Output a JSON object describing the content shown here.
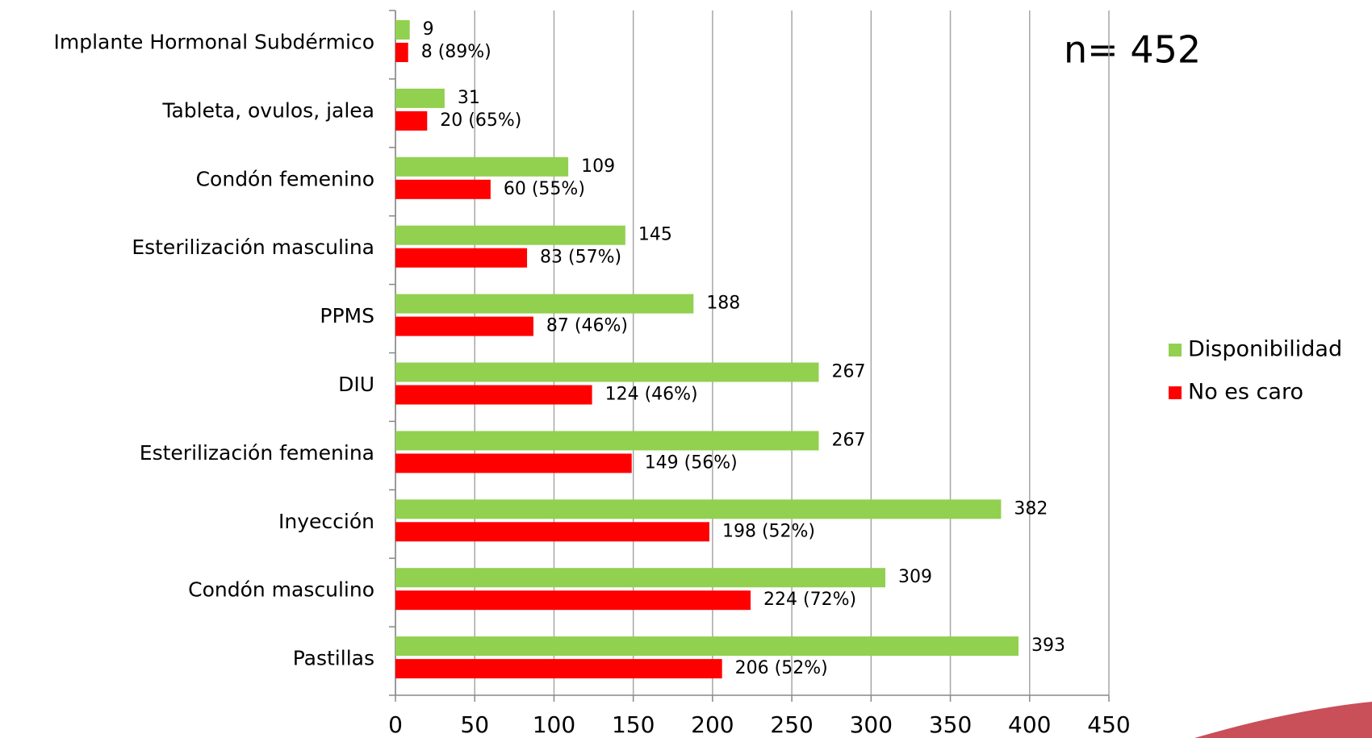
{
  "chart_data": {
    "type": "bar",
    "orientation": "horizontal",
    "annotation": "n= 452",
    "categories": [
      "Implante Hormonal Subdérmico",
      "Tableta, ovulos, jalea",
      "Condón femenino",
      "Esterilización masculina",
      "PPMS",
      "DIU",
      "Esterilización femenina",
      "Inyección",
      "Condón masculino",
      "Pastillas"
    ],
    "series": [
      {
        "name": "Disponibilidad",
        "color": "#92d050",
        "values": [
          9,
          31,
          109,
          145,
          188,
          267,
          267,
          382,
          309,
          393
        ]
      },
      {
        "name": "No es caro",
        "color": "#ff0000",
        "values": [
          8,
          20,
          60,
          83,
          87,
          124,
          149,
          198,
          224,
          206
        ],
        "value_labels": [
          "8 (89%)",
          "20 (65%)",
          "60 (55%)",
          "83 (57%)",
          "87 (46%)",
          "124 (46%)",
          "149 (56%)",
          "198 (52%)",
          "224 (72%)",
          "206 (52%)"
        ]
      }
    ],
    "xlim": [
      0,
      450
    ],
    "xticks": [
      0,
      50,
      100,
      150,
      200,
      250,
      300,
      350,
      400,
      450
    ],
    "grid": true,
    "legend": "right"
  }
}
